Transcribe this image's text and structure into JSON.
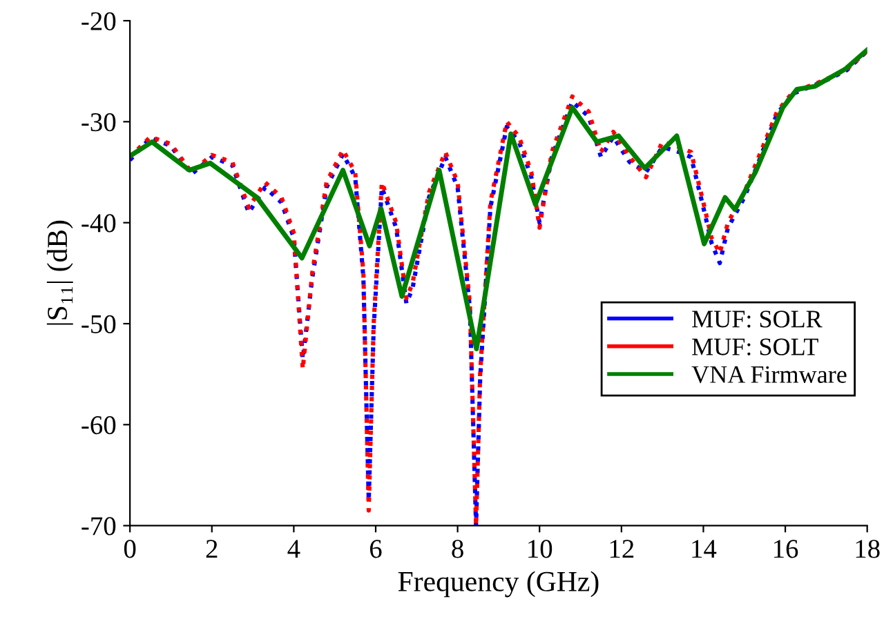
{
  "chart_data": {
    "type": "line",
    "xlabel": "Frequency (GHz)",
    "ylabel": "|S₁₁| (dB)",
    "xlim": [
      0,
      18
    ],
    "xticks": [
      0,
      2,
      4,
      6,
      8,
      10,
      12,
      14,
      16,
      18
    ],
    "ylim": [
      -70,
      -20
    ],
    "yticks": [
      -70,
      -60,
      -50,
      -40,
      -30,
      -20
    ],
    "grid": false,
    "legend": "right",
    "series": [
      {
        "name": "MUF: SOLR",
        "color": "#0000ff",
        "line_style": "dotted",
        "x": [
          0,
          0.5,
          1.0,
          1.5,
          2.0,
          2.5,
          2.9,
          3.3,
          3.7,
          4.0,
          4.22,
          4.45,
          4.8,
          5.2,
          5.5,
          5.7,
          5.83,
          5.95,
          6.15,
          6.5,
          6.75,
          6.9,
          7.3,
          7.7,
          8.0,
          8.3,
          8.45,
          8.55,
          8.8,
          9.2,
          9.5,
          9.8,
          10.0,
          10.3,
          10.8,
          11.2,
          11.5,
          11.8,
          12.2,
          12.6,
          13.0,
          13.4,
          13.7,
          14.0,
          14.2,
          14.4,
          14.6,
          15.0,
          15.3,
          15.8,
          16.2,
          16.7,
          17.0,
          17.5,
          18.0
        ],
        "values": [
          -33.8,
          -31.6,
          -32.4,
          -35.2,
          -33.5,
          -34.3,
          -39.0,
          -36.5,
          -38.0,
          -41.5,
          -53.5,
          -45.5,
          -36.5,
          -33.2,
          -35.5,
          -45.5,
          -67.5,
          -50.5,
          -36.5,
          -40.5,
          -48.0,
          -46.5,
          -37.5,
          -33.5,
          -36.5,
          -48.5,
          -70,
          -55.5,
          -38.5,
          -30.5,
          -32.0,
          -35.5,
          -40.0,
          -33.5,
          -28.0,
          -29.5,
          -33.5,
          -31.5,
          -34.0,
          -35.0,
          -32.5,
          -33.0,
          -33.5,
          -38.5,
          -42.0,
          -44.0,
          -40.5,
          -37.5,
          -34.5,
          -29.2,
          -27.2,
          -26.4,
          -25.9,
          -24.9,
          -23.0
        ]
      },
      {
        "name": "MUF: SOLT",
        "color": "#ff0000",
        "line_style": "dotted",
        "x": [
          0,
          0.5,
          1.0,
          1.5,
          2.0,
          2.5,
          2.9,
          3.3,
          3.7,
          4.0,
          4.22,
          4.45,
          4.8,
          5.2,
          5.5,
          5.7,
          5.83,
          5.95,
          6.15,
          6.5,
          6.75,
          6.9,
          7.3,
          7.7,
          8.0,
          8.3,
          8.45,
          8.55,
          8.8,
          9.2,
          9.5,
          9.8,
          10.0,
          10.3,
          10.8,
          11.2,
          11.5,
          11.8,
          12.2,
          12.6,
          13.0,
          13.4,
          13.7,
          14.0,
          14.2,
          14.4,
          14.6,
          15.0,
          15.3,
          15.8,
          16.2,
          16.7,
          17.0,
          17.5,
          18.0
        ],
        "values": [
          -33.5,
          -31.5,
          -32.2,
          -35.0,
          -33.3,
          -34.0,
          -38.5,
          -36.0,
          -37.5,
          -41.0,
          -54.5,
          -45.0,
          -36.0,
          -32.8,
          -35.0,
          -45.0,
          -68.5,
          -50.0,
          -36.0,
          -40.0,
          -47.5,
          -46.0,
          -37.0,
          -33.0,
          -36.0,
          -48.0,
          -70,
          -55.0,
          -38.0,
          -30.0,
          -31.5,
          -35.0,
          -40.5,
          -33.0,
          -27.5,
          -29.0,
          -33.0,
          -31.0,
          -33.5,
          -35.5,
          -32.0,
          -32.5,
          -33.0,
          -38.0,
          -41.5,
          -43.0,
          -40.0,
          -37.0,
          -34.0,
          -29.0,
          -27.0,
          -26.3,
          -25.8,
          -24.8,
          -23.0
        ]
      },
      {
        "name": "VNA Firmware",
        "color": "#008000",
        "line_style": "solid",
        "x": [
          0,
          0.54,
          1.45,
          1.96,
          3.1,
          4.2,
          5.2,
          5.85,
          6.13,
          6.64,
          7.55,
          8.46,
          9.3,
          9.9,
          10.8,
          11.4,
          11.93,
          12.57,
          13.35,
          14.02,
          14.53,
          14.77,
          15.27,
          15.94,
          16.28,
          16.72,
          17.46,
          18.0
        ],
        "values": [
          -33.4,
          -32.0,
          -34.8,
          -34.1,
          -37.5,
          -43.5,
          -34.8,
          -42.3,
          -38.6,
          -47.3,
          -34.8,
          -52.5,
          -31.2,
          -38.2,
          -28.6,
          -32.0,
          -31.4,
          -34.6,
          -31.4,
          -42.1,
          -37.5,
          -38.7,
          -35.0,
          -28.6,
          -26.8,
          -26.5,
          -24.8,
          -22.9
        ]
      }
    ]
  }
}
